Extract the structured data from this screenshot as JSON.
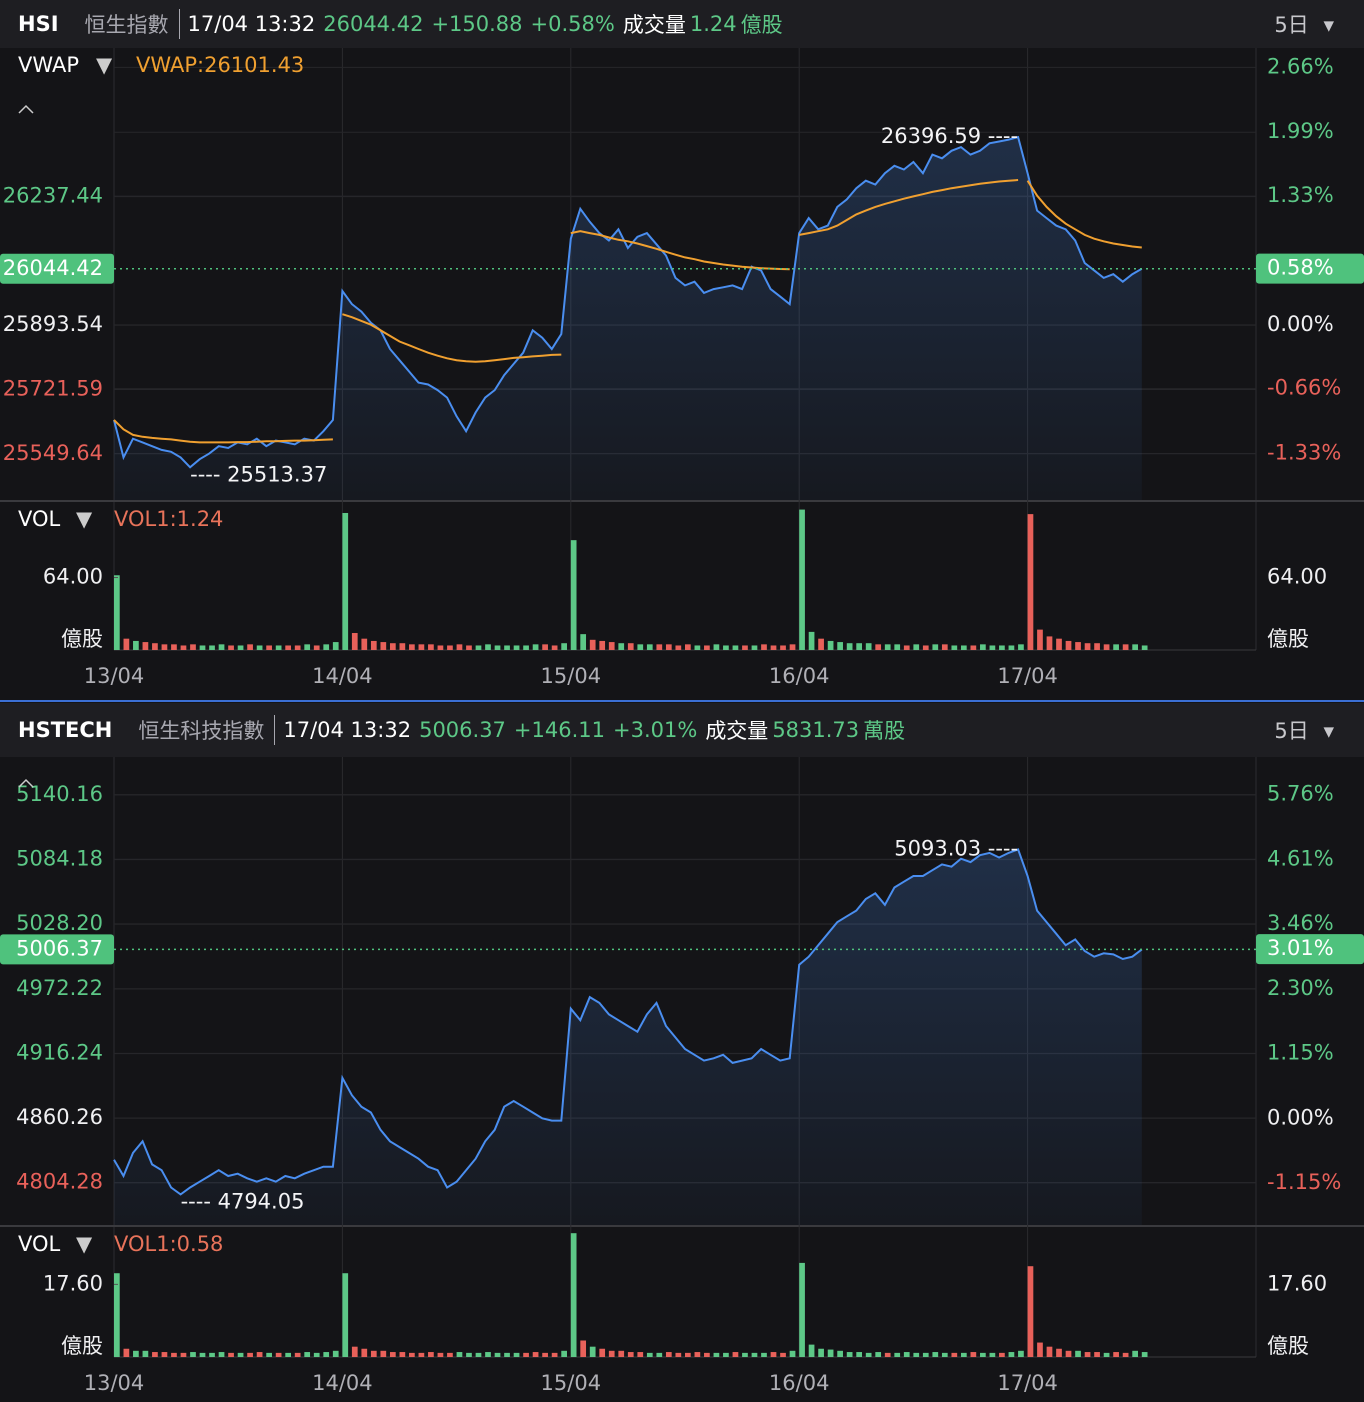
{
  "panels": [
    {
      "header": {
        "symbol": "HSI",
        "name": "恒生指數",
        "time": "17/04 13:32",
        "price": "26044.42",
        "change": "+150.88",
        "percent": "+0.58%",
        "volume_label": "成交量",
        "volume": "1.24",
        "volume_unit": "億股",
        "period": "5日"
      },
      "indicator": {
        "name": "VWAP",
        "value_label": "VWAP:26101.43"
      },
      "chart_data": {
        "type": "line",
        "categories": [
          "13/04",
          "14/04",
          "15/04",
          "16/04",
          "17/04"
        ],
        "series": [
          {
            "color": "#4a8ef0",
            "values": [
              [
                25640,
                25540,
                25590,
                25580,
                25570,
                25560,
                25555,
                25540,
                25513.37,
                25535,
                25550,
                25570,
                25565,
                25580,
                25575,
                25590,
                25570,
                25585,
                25580,
                25575,
                25590,
                25585,
                25610,
                25640
              ],
              [
                25985,
                25950,
                25930,
                25900,
                25880,
                25830,
                25800,
                25770,
                25740,
                25735,
                25720,
                25700,
                25650,
                25610,
                25660,
                25700,
                25720,
                25760,
                25790,
                25820,
                25880,
                25860,
                25830,
                25870
              ],
              [
                26125,
                26205,
                26170,
                26140,
                26120,
                26150,
                26100,
                26130,
                26140,
                26110,
                26080,
                26020,
                26000,
                26010,
                25980,
                25990,
                25995,
                26000,
                25990,
                26050,
                26040,
                25990,
                25970,
                25950
              ],
              [
                26140,
                26180,
                26150,
                26160,
                26210,
                26230,
                26260,
                26280,
                26270,
                26300,
                26320,
                26310,
                26330,
                26300,
                26350,
                26340,
                26360,
                26370,
                26350,
                26360,
                26380,
                26385,
                26390,
                26396.59
              ],
              [
                26300,
                26200,
                26180,
                26160,
                26150,
                26120,
                26060,
                26040,
                26020,
                26030,
                26010,
                26030,
                26044.42,
                null,
                null,
                null,
                null,
                null,
                null,
                null,
                null,
                null,
                null,
                null
              ]
            ]
          },
          {
            "name": "VWAP",
            "color": "#f0a030",
            "values": [
              [
                25640,
                25615,
                25600,
                25595,
                25592,
                25590,
                25588,
                25585,
                25582,
                25580,
                25580,
                25580,
                25580,
                25581,
                25581,
                25582,
                25583,
                25583,
                25584,
                25585,
                25585,
                25586,
                25587,
                25588
              ],
              [
                25923,
                25915,
                25905,
                25895,
                25880,
                25865,
                25850,
                25840,
                25830,
                25820,
                25812,
                25805,
                25800,
                25797,
                25796,
                25797,
                25800,
                25803,
                25806,
                25808,
                25810,
                25812,
                25814,
                25815
              ],
              [
                26140,
                26145,
                26140,
                26135,
                26128,
                26122,
                26118,
                26112,
                26105,
                26098,
                26090,
                26082,
                26075,
                26070,
                26064,
                26060,
                26056,
                26053,
                26050,
                26048,
                26046,
                26045,
                26044,
                26043
              ],
              [
                26135,
                26140,
                26145,
                26150,
                26160,
                26175,
                26190,
                26200,
                26210,
                26218,
                26225,
                26232,
                26238,
                26244,
                26250,
                26255,
                26260,
                26264,
                26268,
                26272,
                26275,
                26278,
                26280,
                26282
              ],
              [
                26280,
                26240,
                26210,
                26185,
                26165,
                26150,
                26135,
                26125,
                26118,
                26112,
                26108,
                26104,
                26101.43,
                null,
                null,
                null,
                null,
                null,
                null,
                null,
                null,
                null,
                null,
                null
              ]
            ]
          }
        ],
        "ylim": [
          25426,
          26635
        ],
        "yticks": [
          26237.44,
          25893.54,
          25721.59,
          25549.64
        ],
        "y2lim": [
          -1.81,
          2.86
        ],
        "y2ticks": [
          {
            "value": 2.66,
            "label": "2.66%"
          },
          {
            "value": 1.99,
            "label": "1.99%"
          },
          {
            "value": 1.33,
            "label": "1.33%"
          },
          {
            "value": 0,
            "label": "0.00%"
          },
          {
            "value": -0.66,
            "label": "-0.66%"
          },
          {
            "value": -1.33,
            "label": "-1.33%"
          }
        ],
        "last_value": 26044.42,
        "last_percent": {
          "value": 0.58,
          "label": "0.58%"
        },
        "high": {
          "value": 26396.59,
          "label": "26396.59 ----"
        },
        "low": {
          "value": 25513.37,
          "label": "---- 25513.37"
        },
        "up_color": "#5dc887",
        "down_color": "#e8615a",
        "highlight_color": "#4fc27d"
      },
      "volume": {
        "type": "bar",
        "title": "VOL",
        "value_label": "VOL1:1.24",
        "unit": "億股",
        "values": [
          [
            66,
            10,
            8,
            7,
            6,
            5,
            5,
            4,
            5,
            4,
            4,
            5,
            4,
            4,
            5,
            4,
            4,
            4,
            4,
            4,
            5,
            4,
            5,
            7
          ],
          [
            121,
            15,
            10,
            8,
            7,
            6,
            6,
            5,
            5,
            5,
            4,
            4,
            5,
            4,
            4,
            5,
            4,
            4,
            4,
            4,
            5,
            5,
            4,
            6
          ],
          [
            97,
            14,
            9,
            8,
            7,
            6,
            6,
            5,
            5,
            5,
            5,
            4,
            5,
            4,
            4,
            5,
            4,
            4,
            4,
            4,
            5,
            4,
            4,
            5
          ],
          [
            124,
            16,
            10,
            8,
            7,
            6,
            6,
            6,
            5,
            5,
            5,
            4,
            5,
            4,
            5,
            5,
            4,
            4,
            4,
            5,
            4,
            4,
            4,
            5
          ],
          [
            120,
            18,
            12,
            10,
            8,
            7,
            6,
            6,
            5,
            5,
            5,
            5,
            4,
            null,
            null,
            null,
            null,
            null,
            null,
            null,
            null,
            null,
            null,
            null
          ]
        ],
        "ylim": [
          0,
          130.7
        ],
        "yticks": [
          {
            "value": 64,
            "label": "64.00"
          }
        ]
      }
    },
    {
      "header": {
        "symbol": "HSTECH",
        "name": "恒生科技指數",
        "time": "17/04 13:32",
        "price": "5006.37",
        "change": "+146.11",
        "percent": "+3.01%",
        "volume_label": "成交量",
        "volume": "5831.73",
        "volume_unit": "萬股",
        "period": "5日"
      },
      "chart_data": {
        "type": "line",
        "categories": [
          "13/04",
          "14/04",
          "15/04",
          "16/04",
          "17/04"
        ],
        "series": [
          {
            "color": "#4a8ef0",
            "values": [
              [
                4824,
                4810,
                4830,
                4840,
                4820,
                4815,
                4800,
                4794.05,
                4800,
                4805,
                4810,
                4815,
                4810,
                4812,
                4808,
                4805,
                4808,
                4805,
                4810,
                4808,
                4812,
                4815,
                4818,
                4818
              ],
              [
                4895,
                4880,
                4870,
                4865,
                4850,
                4840,
                4835,
                4830,
                4825,
                4818,
                4815,
                4800,
                4805,
                4815,
                4825,
                4840,
                4850,
                4870,
                4875,
                4870,
                4865,
                4860,
                4858,
                4858
              ],
              [
                4955,
                4945,
                4965,
                4960,
                4950,
                4945,
                4940,
                4935,
                4950,
                4960,
                4940,
                4930,
                4920,
                4915,
                4910,
                4912,
                4915,
                4908,
                4910,
                4912,
                4920,
                4915,
                4910,
                4912
              ],
              [
                4993,
                5000,
                5010,
                5020,
                5030,
                5035,
                5040,
                5050,
                5055,
                5045,
                5060,
                5065,
                5070,
                5070,
                5075,
                5080,
                5078,
                5085,
                5082,
                5088,
                5090,
                5086,
                5090,
                5093.03
              ],
              [
                5070,
                5040,
                5030,
                5020,
                5010,
                5015,
                5005,
                5000,
                5003,
                5002,
                4998,
                5000,
                5006.37,
                null,
                null,
                null,
                null,
                null,
                null,
                null,
                null,
                null,
                null,
                null
              ]
            ]
          }
        ],
        "ylim": [
          4767.5,
          5173.1
        ],
        "yticks": [
          5140.16,
          5084.18,
          {
            "value": 5028.2,
            "label": "5028.20"
          },
          4972.22,
          4916.24,
          4860.26,
          4804.28
        ],
        "y2lim": [
          -1.9,
          6.43
        ],
        "y2ticks": [
          {
            "value": 5.76,
            "label": "5.76%"
          },
          {
            "value": 4.61,
            "label": "4.61%"
          },
          {
            "value": 3.46,
            "label": "3.46%"
          },
          {
            "value": 2.3,
            "label": "2.30%"
          },
          {
            "value": 1.15,
            "label": "1.15%"
          },
          {
            "value": 0,
            "label": "0.00%"
          },
          {
            "value": -1.15,
            "label": "-1.15%"
          }
        ],
        "last_value": 5006.37,
        "last_percent": {
          "value": 3.01,
          "label": "3.01%"
        },
        "high": {
          "value": 5093.03,
          "label": "5093.03 ----"
        },
        "low": {
          "value": 4794.05,
          "label": "---- 4794.05"
        },
        "up_color": "#5dc887",
        "down_color": "#e8615a",
        "highlight_color": "#4fc27d"
      },
      "volume": {
        "type": "bar",
        "title": "VOL",
        "value_label": "VOL1:0.58",
        "unit": "億股",
        "values": [
          [
            20.3,
            2,
            1.5,
            1.5,
            1.2,
            1.2,
            1,
            1,
            1.2,
            1,
            1,
            1.2,
            1,
            1,
            1,
            1.2,
            1,
            1,
            1,
            1,
            1.2,
            1,
            1.2,
            1.5
          ],
          [
            20.3,
            2.5,
            2,
            1.5,
            1.5,
            1.2,
            1.2,
            1,
            1,
            1.2,
            1,
            1,
            1.2,
            1,
            1,
            1.2,
            1,
            1,
            1,
            1,
            1.2,
            1,
            1,
            1.5
          ],
          [
            30,
            4,
            2.5,
            2,
            1.5,
            1.5,
            1.2,
            1.2,
            1,
            1,
            1.2,
            1,
            1,
            1.2,
            1,
            1,
            1,
            1.2,
            1,
            1,
            1,
            1.2,
            1,
            1.5
          ],
          [
            22.8,
            3,
            2,
            1.8,
            1.5,
            1.2,
            1.2,
            1,
            1.2,
            1,
            1,
            1.2,
            1,
            1,
            1.2,
            1,
            1,
            1,
            1.2,
            1,
            1,
            1,
            1.2,
            1.5
          ],
          [
            22,
            3.5,
            2.5,
            2,
            1.5,
            1.5,
            1.2,
            1.2,
            1,
            1.2,
            1,
            1.5,
            1.2,
            null,
            null,
            null,
            null,
            null,
            null,
            null,
            null,
            null,
            null,
            null
          ]
        ],
        "ylim": [
          0,
          31.5
        ],
        "yticks": [
          {
            "value": 17.6,
            "label": "17.60"
          }
        ]
      }
    }
  ]
}
